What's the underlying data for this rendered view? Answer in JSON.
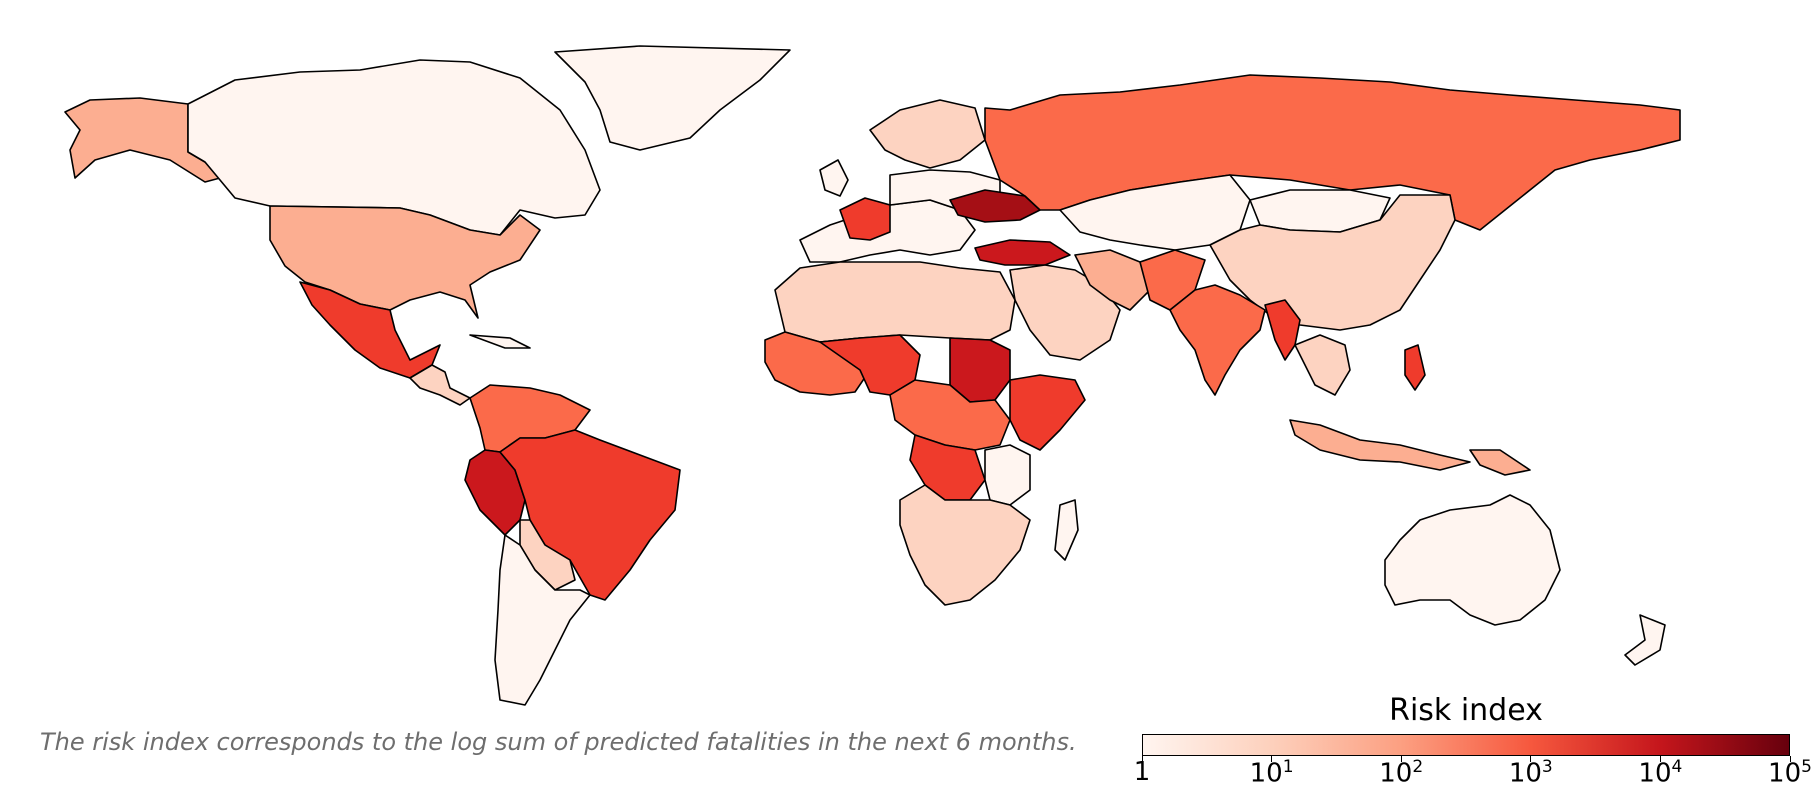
{
  "note": "The risk index corresponds to the log sum of predicted fatalities in the next 6 months.",
  "legend": {
    "title": "Risk index",
    "ticks": [
      {
        "base": "1",
        "exp": ""
      },
      {
        "base": "10",
        "exp": "1"
      },
      {
        "base": "10",
        "exp": "2"
      },
      {
        "base": "10",
        "exp": "3"
      },
      {
        "base": "10",
        "exp": "4"
      },
      {
        "base": "10",
        "exp": "5"
      }
    ],
    "range": [
      1,
      100000
    ],
    "scale": "log",
    "colormap": [
      "#fff5f0",
      "#fdd0bc",
      "#fc9f81",
      "#f6583e",
      "#c5161c",
      "#67000d"
    ]
  },
  "colors": {
    "level_0": "#fff5f0",
    "level_1": "#fdd3c1",
    "level_2": "#fcae91",
    "level_3": "#fb6a4a",
    "level_4": "#ef3b2c",
    "level_5": "#cb181d",
    "level_6": "#a50f15"
  }
}
